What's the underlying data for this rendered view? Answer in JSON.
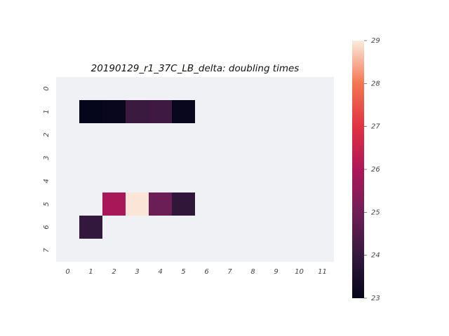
{
  "chart_data": {
    "type": "heatmap",
    "title": "20190129_r1_37C_LB_delta: doubling times",
    "xlabel": "",
    "ylabel": "",
    "x_categories": [
      "0",
      "1",
      "2",
      "3",
      "4",
      "5",
      "6",
      "7",
      "8",
      "9",
      "10",
      "11"
    ],
    "y_categories": [
      "0",
      "1",
      "2",
      "3",
      "4",
      "5",
      "6",
      "7"
    ],
    "cells": [
      {
        "row": 1,
        "col": 1,
        "value": 23.05
      },
      {
        "row": 1,
        "col": 2,
        "value": 23.1
      },
      {
        "row": 1,
        "col": 3,
        "value": 24.1
      },
      {
        "row": 1,
        "col": 4,
        "value": 24.15
      },
      {
        "row": 1,
        "col": 5,
        "value": 23.1
      },
      {
        "row": 5,
        "col": 2,
        "value": 25.9
      },
      {
        "row": 5,
        "col": 3,
        "value": 28.95
      },
      {
        "row": 5,
        "col": 4,
        "value": 24.9
      },
      {
        "row": 5,
        "col": 5,
        "value": 23.9
      },
      {
        "row": 6,
        "col": 1,
        "value": 23.95
      }
    ],
    "colorbar": {
      "vmin": 23,
      "vmax": 29,
      "ticks": [
        "23",
        "24",
        "25",
        "26",
        "27",
        "28",
        "29"
      ],
      "colormap": "rocket"
    },
    "missing_color": "#f0f1f5",
    "grid": false
  }
}
